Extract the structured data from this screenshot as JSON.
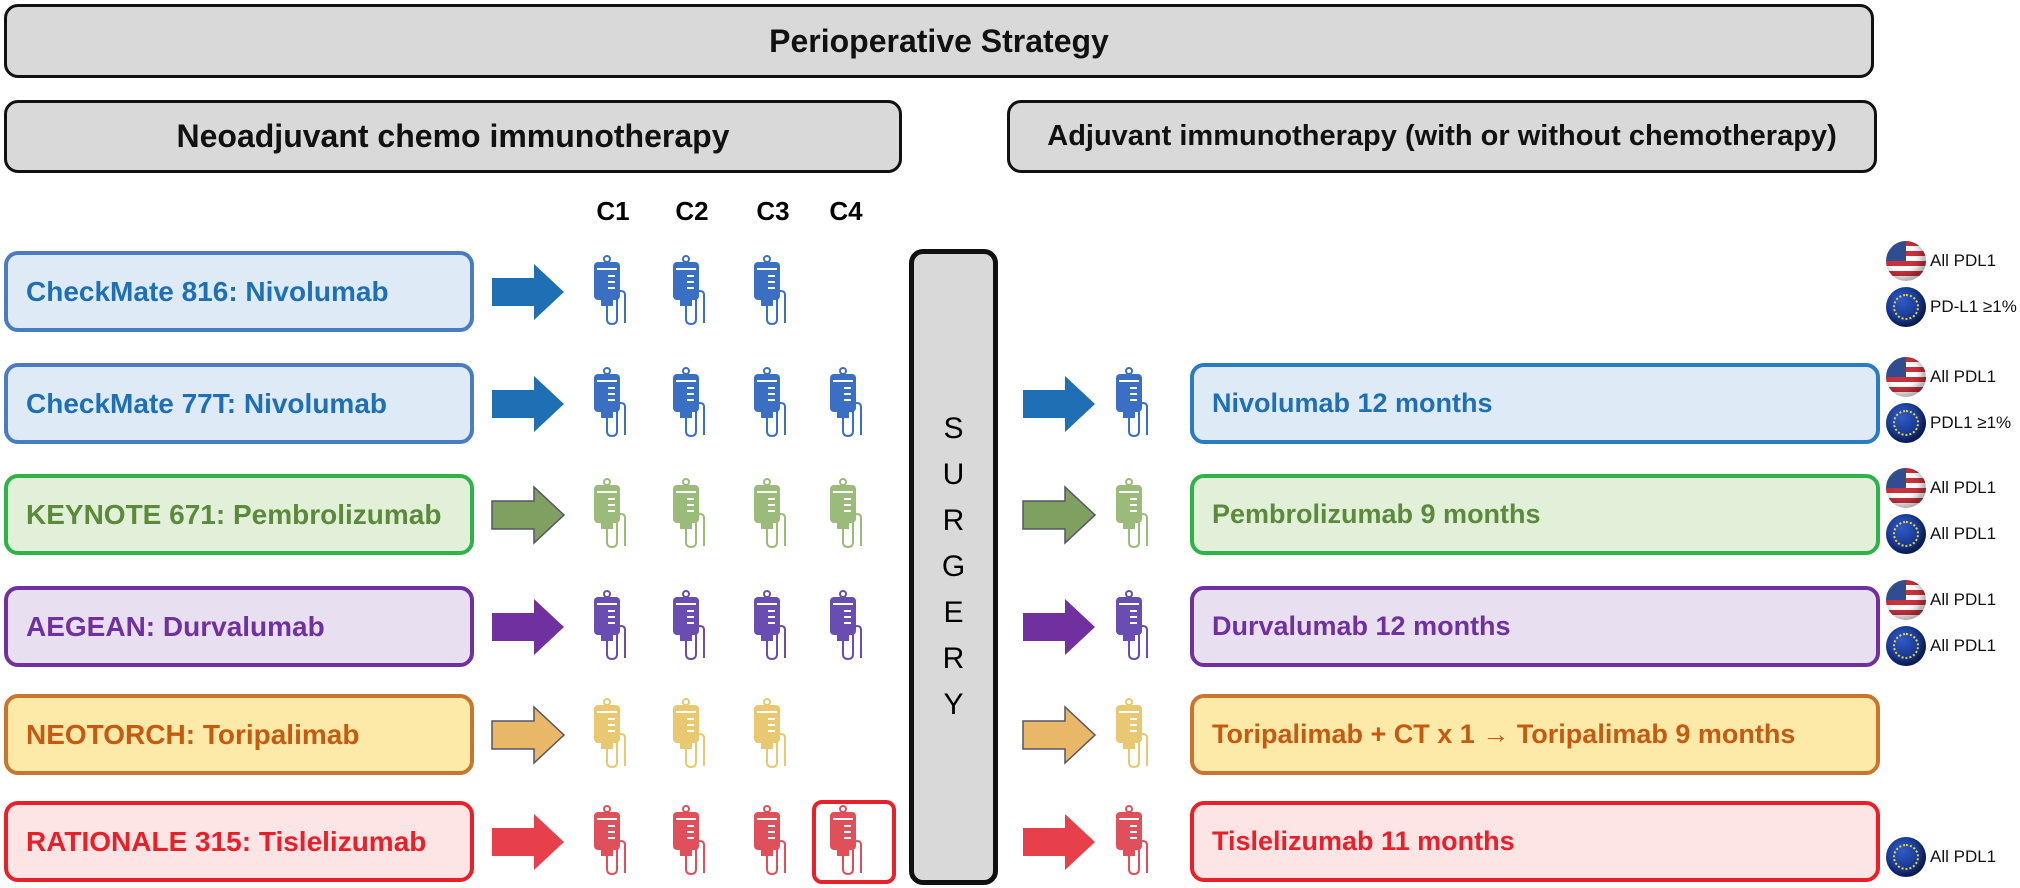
{
  "title": "Perioperative Strategy",
  "neoadjuvant_header": "Neoadjuvant chemo immunotherapy",
  "adjuvant_header": "Adjuvant immunotherapy (with or without chemotherapy)",
  "cycles": [
    "C1",
    "C2",
    "C3",
    "C4"
  ],
  "surgery_letters": [
    "S",
    "U",
    "R",
    "G",
    "E",
    "R",
    "Y"
  ],
  "colors": {
    "blue": "#1f6fb5",
    "green": "#5a8a3a",
    "purple": "#7030a0",
    "orange": "#c55a11",
    "red": "#e8202a"
  },
  "trials": [
    {
      "label": "CheckMate 816: Nivolumab",
      "cycles": 3,
      "text": "#1f6fb5",
      "border": "#4a7cc0",
      "bg": "#deebf7",
      "icon": "#3a6fc4",
      "arrow": "#1f6fb5",
      "adjuvant": null,
      "approvals": [
        {
          "flag": "us",
          "text": "All PDL1"
        },
        {
          "flag": "eu",
          "text": "PD-L1 ≥1%"
        }
      ]
    },
    {
      "label": "CheckMate 77T: Nivolumab",
      "cycles": 4,
      "text": "#1f6fb5",
      "border": "#4a7cc0",
      "bg": "#deebf7",
      "icon": "#3a6fc4",
      "arrow": "#1f6fb5",
      "adjuvant": "Nivolumab 12 months",
      "adj_border": "#2a7cc0",
      "approvals": [
        {
          "flag": "us",
          "text": "All PDL1"
        },
        {
          "flag": "eu",
          "text": "PDL1 ≥1%"
        }
      ]
    },
    {
      "label": "KEYNOTE 671: Pembrolizumab",
      "cycles": 4,
      "text": "#5a8a3a",
      "border": "#2eb34a",
      "bg": "#e2f0d9",
      "icon": "#9bbb7a",
      "arrow": "#7fa060",
      "adjuvant": "Pembrolizumab 9 months",
      "adj_border": "#2eb34a",
      "approvals": [
        {
          "flag": "us",
          "text": "All PDL1"
        },
        {
          "flag": "eu",
          "text": "All PDL1"
        }
      ]
    },
    {
      "label": "AEGEAN: Durvalumab",
      "cycles": 4,
      "text": "#7030a0",
      "border": "#7030a0",
      "bg": "#e8e0f0",
      "icon": "#6a4db0",
      "arrow": "#7030a0",
      "adjuvant": "Durvalumab 12 months",
      "adj_border": "#7030a0",
      "approvals": [
        {
          "flag": "us",
          "text": "All PDL1"
        },
        {
          "flag": "eu",
          "text": "All PDL1"
        }
      ]
    },
    {
      "label": "NEOTORCH: Toripalimab",
      "cycles": 3,
      "text": "#c55a11",
      "border": "#c87530",
      "bg": "#fde9a8",
      "icon": "#e8c870",
      "arrow": "#e8b868",
      "adjuvant": "Toripalimab + CT x 1 → Toripalimab 9 months",
      "adj_border": "#c87530",
      "approvals": []
    },
    {
      "label": "RATIONALE 315: Tislelizumab",
      "cycles": 4,
      "text": "#e8202a",
      "border": "#e8202a",
      "bg": "#fde5e5",
      "icon": "#e0505a",
      "arrow": "#e8404a",
      "adjuvant": "Tislelizumab 11 months",
      "adj_border": "#e8202a",
      "approvals": [
        {
          "flag": "eu",
          "text": "All PDL1"
        }
      ]
    }
  ]
}
